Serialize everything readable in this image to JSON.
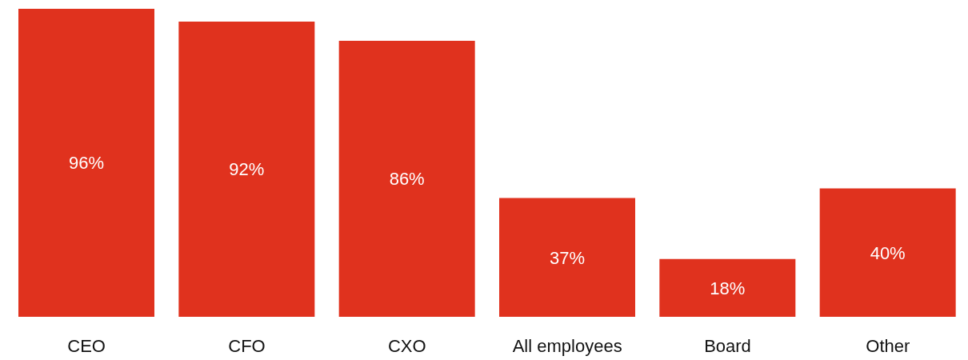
{
  "chart_data": {
    "type": "bar",
    "categories": [
      "CEO",
      "CFO",
      "CXO",
      "All employees",
      "Board",
      "Other"
    ],
    "values": [
      96,
      92,
      86,
      37,
      18,
      40
    ],
    "color": "#e0321e",
    "data_labels": true,
    "value_labels": [
      "96%",
      "92%",
      "86%",
      "37%",
      "18%",
      "40%"
    ],
    "grid": false,
    "legend": false
  }
}
